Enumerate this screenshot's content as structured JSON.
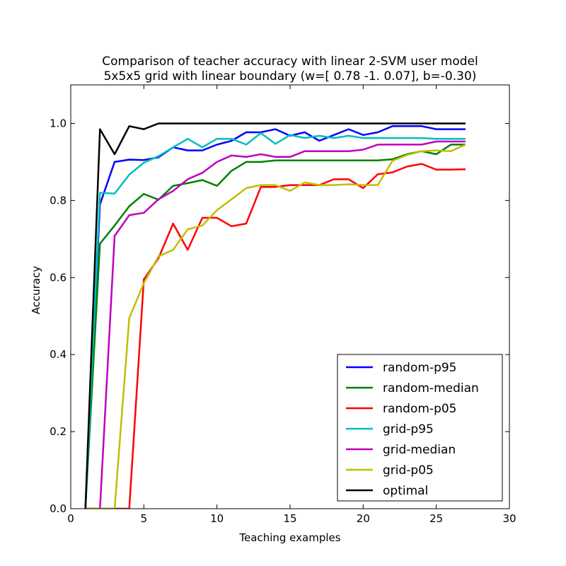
{
  "chart_data": {
    "type": "line",
    "title_line1": "Comparison of teacher accuracy with linear 2-SVM user model",
    "title_line2": "5x5x5 grid with linear boundary (w=[ 0.78 -1.    0.07], b=-0.30)",
    "xlabel": "Teaching examples",
    "ylabel": "Accuracy",
    "xlim": [
      0,
      30
    ],
    "ylim": [
      0.0,
      1.1
    ],
    "xticks": [
      0,
      5,
      10,
      15,
      20,
      25,
      30
    ],
    "yticks": [
      0.0,
      0.2,
      0.4,
      0.6,
      0.8,
      1.0
    ],
    "xtick_labels": [
      "0",
      "5",
      "10",
      "15",
      "20",
      "25",
      "30"
    ],
    "ytick_labels": [
      "0.0",
      "0.2",
      "0.4",
      "0.6",
      "0.8",
      "1.0"
    ],
    "grid": false,
    "legend_position": "lower right",
    "x": [
      1,
      2,
      3,
      4,
      5,
      6,
      7,
      8,
      9,
      10,
      11,
      12,
      13,
      14,
      15,
      16,
      17,
      18,
      19,
      20,
      21,
      22,
      23,
      24,
      25,
      26,
      27
    ],
    "series": [
      {
        "name": "random-p95",
        "color": "#0000ff",
        "values": [
          0.0,
          0.79,
          0.9,
          0.906,
          0.905,
          0.912,
          0.938,
          0.93,
          0.93,
          0.945,
          0.955,
          0.977,
          0.977,
          0.985,
          0.968,
          0.977,
          0.955,
          0.97,
          0.985,
          0.97,
          0.977,
          0.993,
          0.993,
          0.993,
          0.985,
          0.985,
          0.985
        ]
      },
      {
        "name": "random-median",
        "color": "#008000",
        "values": [
          0.0,
          0.688,
          0.735,
          0.785,
          0.817,
          0.802,
          0.838,
          0.845,
          0.853,
          0.838,
          0.877,
          0.9,
          0.9,
          0.904,
          0.904,
          0.904,
          0.904,
          0.904,
          0.904,
          0.904,
          0.904,
          0.907,
          0.92,
          0.928,
          0.92,
          0.945,
          0.945
        ]
      },
      {
        "name": "random-p05",
        "color": "#ff0000",
        "values": [
          0.0,
          0.0,
          0.0,
          0.0,
          0.595,
          0.65,
          0.74,
          0.672,
          0.755,
          0.755,
          0.733,
          0.74,
          0.835,
          0.835,
          0.84,
          0.84,
          0.84,
          0.855,
          0.855,
          0.832,
          0.868,
          0.873,
          0.888,
          0.895,
          0.88,
          0.88,
          0.881
        ]
      },
      {
        "name": "grid-p95",
        "color": "#00bfbf",
        "values": [
          0.0,
          0.82,
          0.818,
          0.867,
          0.898,
          0.915,
          0.938,
          0.96,
          0.938,
          0.96,
          0.96,
          0.945,
          0.975,
          0.947,
          0.97,
          0.962,
          0.968,
          0.962,
          0.968,
          0.962,
          0.962,
          0.962,
          0.962,
          0.962,
          0.96,
          0.96,
          0.96
        ]
      },
      {
        "name": "grid-median",
        "color": "#bf00bf",
        "values": [
          0.0,
          0.0,
          0.708,
          0.762,
          0.768,
          0.803,
          0.825,
          0.855,
          0.872,
          0.9,
          0.917,
          0.913,
          0.92,
          0.913,
          0.913,
          0.928,
          0.928,
          0.928,
          0.928,
          0.932,
          0.945,
          0.945,
          0.945,
          0.945,
          0.953,
          0.953,
          0.953
        ]
      },
      {
        "name": "grid-p05",
        "color": "#bfbf00",
        "values": [
          0.0,
          0.0,
          0.0,
          0.495,
          0.585,
          0.655,
          0.672,
          0.725,
          0.735,
          0.775,
          0.803,
          0.832,
          0.84,
          0.84,
          0.825,
          0.847,
          0.84,
          0.84,
          0.842,
          0.84,
          0.84,
          0.903,
          0.918,
          0.928,
          0.93,
          0.928,
          0.945
        ]
      },
      {
        "name": "optimal",
        "color": "#000000",
        "values": [
          0.0,
          0.985,
          0.92,
          0.993,
          0.985,
          1.0,
          1.0,
          1.0,
          1.0,
          1.0,
          1.0,
          1.0,
          1.0,
          1.0,
          1.0,
          1.0,
          1.0,
          1.0,
          1.0,
          1.0,
          1.0,
          1.0,
          1.0,
          1.0,
          1.0,
          1.0,
          1.0
        ]
      }
    ]
  }
}
